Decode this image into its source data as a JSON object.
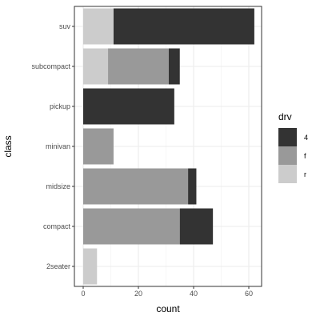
{
  "chart_data": {
    "type": "bar",
    "orientation": "horizontal",
    "stacked": true,
    "xlabel": "count",
    "ylabel": "class",
    "xlim": [
      0,
      63
    ],
    "x_ticks": [
      0,
      20,
      40,
      60
    ],
    "grid": true,
    "legend_title": "drv",
    "legend_placement": "right",
    "categories": [
      "2seater",
      "compact",
      "midsize",
      "minivan",
      "pickup",
      "subcompact",
      "suv"
    ],
    "series": [
      {
        "name": "4",
        "color": "#333333",
        "values": [
          0,
          12,
          3,
          0,
          33,
          4,
          51
        ]
      },
      {
        "name": "f",
        "color": "#999999",
        "values": [
          0,
          35,
          38,
          11,
          0,
          22,
          0
        ]
      },
      {
        "name": "r",
        "color": "#cccccc",
        "values": [
          5,
          0,
          0,
          0,
          0,
          9,
          11
        ]
      }
    ],
    "stack_order": [
      "r",
      "f",
      "4"
    ]
  }
}
